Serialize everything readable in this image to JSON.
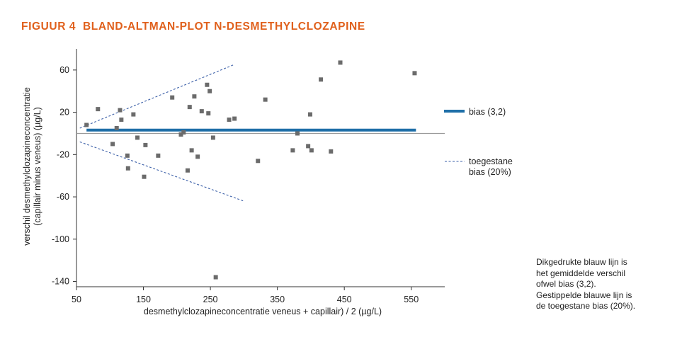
{
  "figure_label": "FIGUUR 4",
  "title": "BLAND-ALTMAN-PLOT N-DESMETHYLCLOZAPINE",
  "note_lines": [
    "Dikgedrukte blauw lijn is",
    "het gemiddelde verschil",
    "ofwel bias (3,2).",
    "Gestippelde blauwe lijn is",
    "de toegestane bias (20%)."
  ],
  "colors": {
    "title": "#e0601c",
    "bias": "#1f6fa8",
    "limits": "#3b5fa8",
    "points": "#6b6b6b",
    "zero": "#9a9a9a"
  },
  "chart_data": {
    "type": "scatter",
    "xlabel": "desmethylclozapineconcentratie veneus + capillair) / 2 (µg/L)",
    "ylabel_lines": [
      "verschil desmethylclozapineconcentratie",
      "(capillair minus veneus) (µg/L)"
    ],
    "xlim": [
      50,
      600
    ],
    "ylim": [
      -145,
      80
    ],
    "xticks": [
      50,
      150,
      250,
      350,
      450,
      550
    ],
    "yticks": [
      60,
      20,
      -20,
      -60,
      -100,
      -140
    ],
    "xtick_labels": [
      "50",
      "150",
      "250",
      "350",
      "450",
      "550"
    ],
    "ytick_labels": [
      "60",
      "20",
      "-20",
      "-60",
      "-100",
      "-140"
    ],
    "bias": {
      "value": 3.2,
      "x_range": [
        65,
        557
      ],
      "label": "bias (3,2)"
    },
    "allowed_bias": {
      "label_lines": [
        "toegestane",
        "bias (20%)"
      ],
      "upper": [
        [
          55,
          5
        ],
        [
          285,
          65
        ]
      ],
      "lower": [
        [
          55,
          -8
        ],
        [
          300,
          -64
        ]
      ]
    },
    "zero_line": {
      "value": 0,
      "x_range": [
        50,
        600
      ]
    },
    "points": [
      [
        65,
        8
      ],
      [
        82,
        23
      ],
      [
        104,
        -10
      ],
      [
        110,
        5
      ],
      [
        115,
        22
      ],
      [
        117,
        13
      ],
      [
        126,
        -21
      ],
      [
        127,
        -33
      ],
      [
        135,
        18
      ],
      [
        141,
        -4
      ],
      [
        151,
        -41
      ],
      [
        153,
        -11
      ],
      [
        172,
        -21
      ],
      [
        193,
        34
      ],
      [
        206,
        -1
      ],
      [
        210,
        1
      ],
      [
        216,
        -35
      ],
      [
        219,
        25
      ],
      [
        222,
        -16
      ],
      [
        226,
        35
      ],
      [
        231,
        -22
      ],
      [
        237,
        21
      ],
      [
        245,
        46
      ],
      [
        247,
        19
      ],
      [
        249,
        40
      ],
      [
        254,
        -4
      ],
      [
        258,
        -136
      ],
      [
        278,
        13
      ],
      [
        286,
        14
      ],
      [
        321,
        -26
      ],
      [
        332,
        32
      ],
      [
        373,
        -16
      ],
      [
        380,
        0
      ],
      [
        396,
        -12
      ],
      [
        399,
        18
      ],
      [
        401,
        -16
      ],
      [
        415,
        51
      ],
      [
        430,
        -17
      ],
      [
        444,
        67
      ],
      [
        555,
        57
      ]
    ]
  }
}
